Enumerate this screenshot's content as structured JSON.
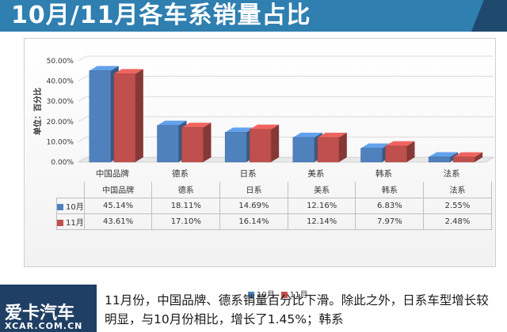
{
  "header": {
    "title": "10月/11月各车系销量占比"
  },
  "chart_data": {
    "type": "bar",
    "ylabel": "单位：百分比",
    "ylim": [
      0,
      50
    ],
    "yticks": [
      "0.00%",
      "10.00%",
      "20.00%",
      "30.00%",
      "40.00%",
      "50.00%"
    ],
    "categories": [
      "中国品牌",
      "德系",
      "日系",
      "美系",
      "韩系",
      "法系"
    ],
    "series": [
      {
        "name": "10月",
        "color": "#4f81bd",
        "values": [
          45.14,
          18.11,
          14.69,
          12.16,
          6.83,
          2.55
        ],
        "labels": [
          "45.14%",
          "18.11%",
          "14.69%",
          "12.16%",
          "6.83%",
          "2.55%"
        ]
      },
      {
        "name": "11月",
        "color": "#c0504d",
        "values": [
          43.61,
          17.1,
          16.14,
          12.14,
          7.97,
          2.48
        ],
        "labels": [
          "43.61%",
          "17.10%",
          "16.14%",
          "12.14%",
          "7.97%",
          "2.48%"
        ]
      }
    ],
    "grid": true,
    "legend": "bottom"
  },
  "footer": {
    "logo_text": "爱卡汽车",
    "logo_sub": "XCAR.COM.CN",
    "text": "11月份，中国品牌、德系销量百分比下滑。除此之外，日系车型增长较明显，与10月份相比，增长了1.45%；韩系"
  }
}
